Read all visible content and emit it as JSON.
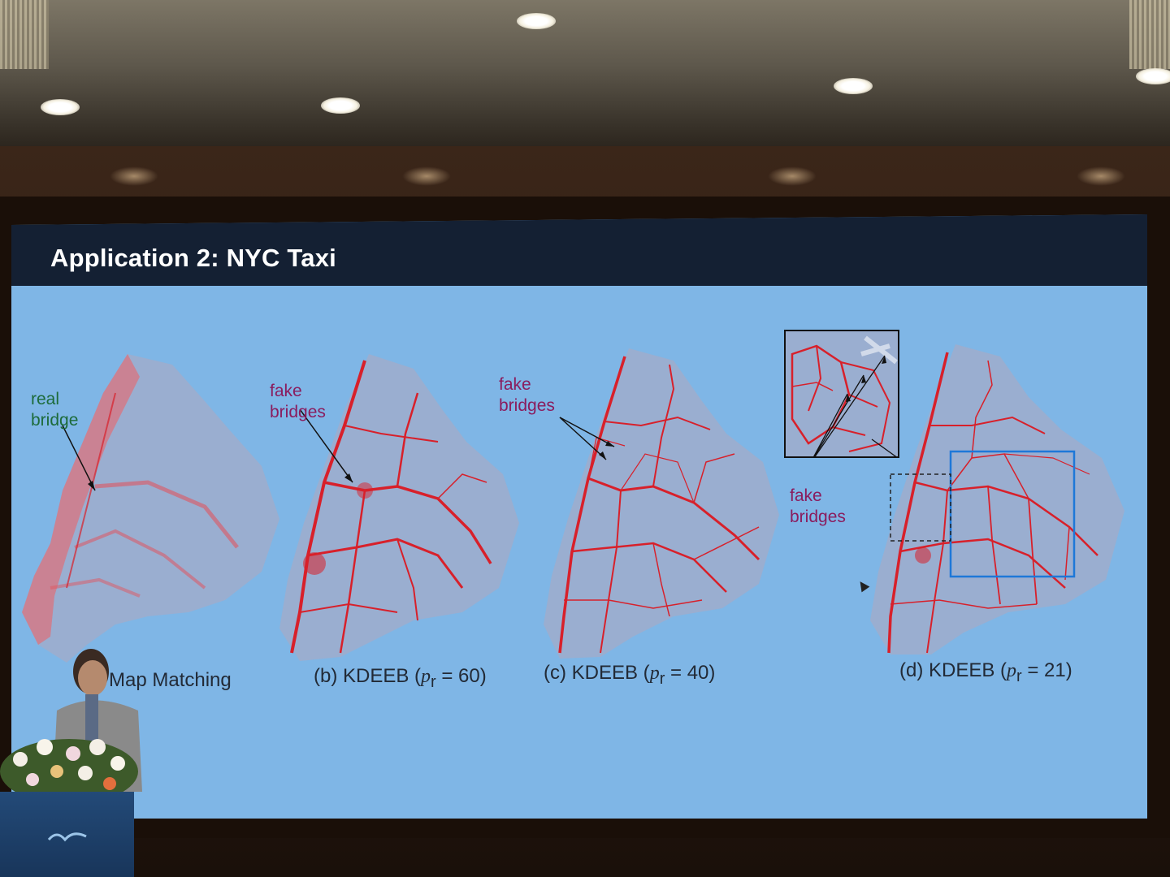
{
  "slide": {
    "title": "Application 2: NYC Taxi",
    "panels": [
      {
        "caption_prefix": "",
        "caption_text": "Map Matching",
        "caption_suffix": ""
      },
      {
        "caption_prefix": "(b) KDEEB (",
        "caption_var": "p",
        "caption_sub": "r",
        "caption_suffix": " = 60)"
      },
      {
        "caption_prefix": "(c) KDEEB (",
        "caption_var": "p",
        "caption_sub": "r",
        "caption_suffix": " = 40)"
      },
      {
        "caption_prefix": "(d) KDEEB (",
        "caption_var": "p",
        "caption_sub": "r",
        "caption_suffix": " = 21)"
      }
    ],
    "annotations": {
      "real_bridge": [
        "real",
        "bridge"
      ],
      "fake_bridges_b": [
        "fake",
        "bridges"
      ],
      "fake_bridges_c": [
        "fake",
        "bridges"
      ],
      "fake_bridges_d": [
        "fake",
        "bridges"
      ]
    }
  },
  "colors": {
    "slide_bg": "#7fb6e6",
    "header_bg": "#142033",
    "density_red": "#d8202a",
    "annotation_green": "#1d6b3a",
    "annotation_purple": "#8a1c5e",
    "highlight_blue": "#1e78d8"
  }
}
